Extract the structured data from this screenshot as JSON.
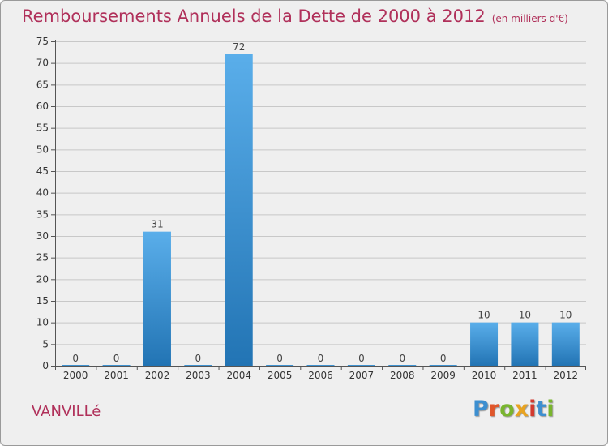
{
  "chart_data": {
    "type": "bar",
    "title": "Remboursements Annuels de la Dette de 2000 à 2012",
    "unit_note": "(en milliers d'€)",
    "categories": [
      "2000",
      "2001",
      "2002",
      "2003",
      "2004",
      "2005",
      "2006",
      "2007",
      "2008",
      "2009",
      "2010",
      "2011",
      "2012"
    ],
    "values": [
      0,
      0,
      31,
      0,
      72,
      0,
      0,
      0,
      0,
      0,
      10,
      10,
      10
    ],
    "data_labels": [
      "0",
      "0",
      "31",
      "0",
      "72",
      "0",
      "0",
      "0",
      "0",
      "0",
      "10",
      "10",
      "10"
    ],
    "ylim": [
      0,
      75
    ],
    "yticks": [
      0,
      5,
      10,
      15,
      20,
      25,
      30,
      35,
      40,
      45,
      50,
      55,
      60,
      65,
      70,
      75
    ],
    "grid": "horizontal",
    "bar_color_top": "#5aaeea",
    "bar_color_bottom": "#2274b4"
  },
  "commune": "VANVILLé",
  "logo": {
    "text": "Proxiti",
    "letter_colors": [
      "#3d8fd0",
      "#e0562a",
      "#79b52e",
      "#e8a321",
      "#d23a2f",
      "#3d8fd0",
      "#79b52e"
    ]
  },
  "colors": {
    "title": "#b0305a",
    "background": "#efefef",
    "grid": "#c8c8c8"
  }
}
